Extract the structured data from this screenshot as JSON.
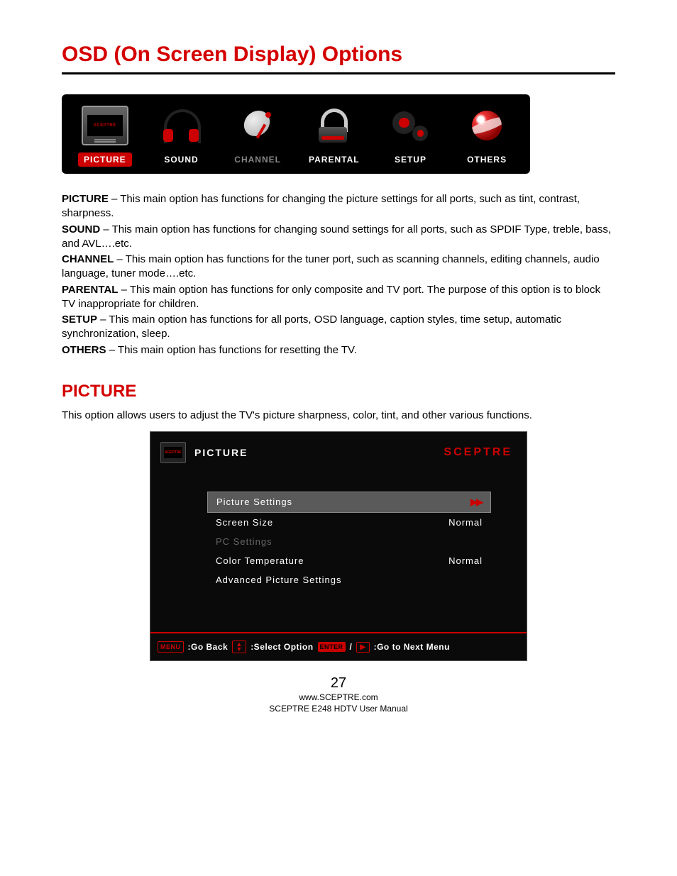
{
  "title": "OSD (On Screen Display) Options",
  "tabs": [
    {
      "label": "PICTURE",
      "active": true
    },
    {
      "label": "SOUND",
      "active": false
    },
    {
      "label": "CHANNEL",
      "active": false,
      "dim": true
    },
    {
      "label": "PARENTAL",
      "active": false
    },
    {
      "label": "SETUP",
      "active": false
    },
    {
      "label": "OTHERS",
      "active": false
    }
  ],
  "tv_brand": "SCEPTRE",
  "descriptions": [
    {
      "term": "PICTURE",
      "text": " – This main option has functions for changing the picture settings for all ports, such as tint, contrast, sharpness."
    },
    {
      "term": "SOUND",
      "text": " – This main option has functions for changing sound settings for all ports, such as SPDIF Type, treble, bass, and AVL….etc."
    },
    {
      "term": "CHANNEL",
      "text": " – This main option has functions for the tuner port, such as scanning channels, editing channels, audio language, tuner mode….etc."
    },
    {
      "term": "PARENTAL",
      "text": " – This main option has functions for only composite and TV port.  The purpose of this option is to block TV inappropriate for children."
    },
    {
      "term": "SETUP",
      "text": " – This main option has functions for all ports, OSD language, caption styles, time setup, automatic synchronization, sleep."
    },
    {
      "term": "OTHERS",
      "text": " – This main option has functions for resetting the TV."
    }
  ],
  "section_heading": "PICTURE",
  "section_intro": "This option allows users to adjust the TV's picture sharpness, color, tint, and other various functions.",
  "picture_menu": {
    "title": "PICTURE",
    "brand": "SCEPTRE",
    "rows": [
      {
        "label": "Picture Settings",
        "value": "",
        "selected": true,
        "arrow": "▶▶"
      },
      {
        "label": "Screen Size",
        "value": "Normal"
      },
      {
        "label": "PC Settings",
        "value": "",
        "dim": true
      },
      {
        "label": "Color Temperature",
        "value": "Normal"
      },
      {
        "label": "Advanced Picture Settings",
        "value": ""
      }
    ],
    "footer": {
      "menu_key": "MENU",
      "go_back": ":Go Back",
      "select": ":Select Option",
      "enter_key": "ENTER",
      "next": ":Go to Next Menu"
    }
  },
  "page_footer": {
    "page_num": "27",
    "url": "www.SCEPTRE.com",
    "manual": "SCEPTRE E248 HDTV User Manual"
  },
  "colors": {
    "accent": "#d40000",
    "osd_bg": "#000000",
    "selected_row_bg": "#5a5a5a"
  }
}
